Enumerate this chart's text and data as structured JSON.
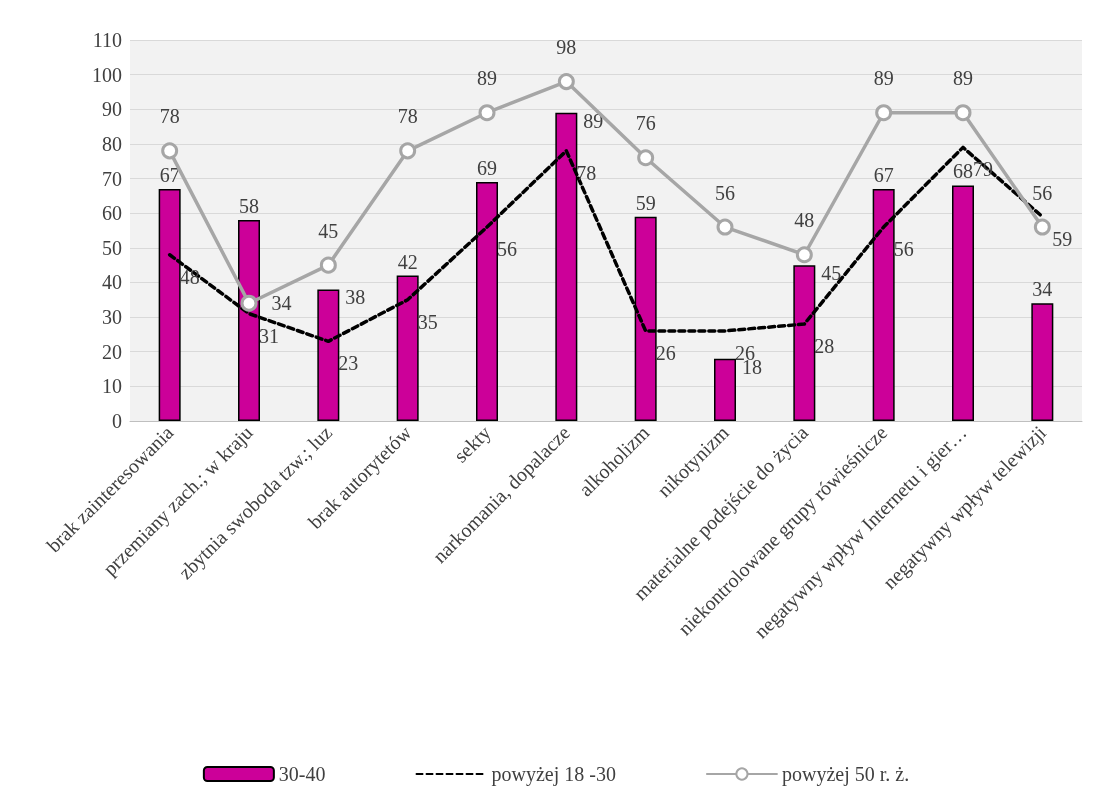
{
  "chart_data": {
    "type": "bar",
    "categories": [
      "brak zainteresowania",
      "przemiany zach.; w kraju",
      "zbytnia swoboda tzw.; luz",
      "brak autorytetów",
      "sekty",
      "narkomania, dopalacze",
      "alkoholizm",
      "nikotynizm",
      "materialne podejście do życia",
      "niekontrolowane grupy rówieśnicze",
      "negatywny wpływ Internetu i gier…",
      "negatywny wpływ telewizji"
    ],
    "series": [
      {
        "name": "30-40",
        "color": "#cc0099",
        "values": [
          67,
          58,
          38,
          42,
          69,
          89,
          59,
          18,
          45,
          67,
          68,
          34
        ]
      },
      {
        "name": "powyżej 18 -30",
        "type": "line",
        "color": "#000000",
        "line_style": "dashed",
        "marker": "none",
        "values": [
          48,
          31,
          23,
          35,
          56,
          78,
          26,
          26,
          28,
          56,
          79,
          59
        ]
      },
      {
        "name": "powyżej 50 r. ż.",
        "type": "line",
        "color": "#a6a6a6",
        "line_style": "solid",
        "marker": "circle",
        "values": [
          78,
          34,
          45,
          78,
          89,
          98,
          76,
          56,
          48,
          89,
          89,
          56
        ]
      }
    ],
    "ylim": [
      0,
      110
    ],
    "yticks": [
      0,
      10,
      20,
      30,
      40,
      50,
      60,
      70,
      80,
      90,
      100,
      110
    ],
    "grid": "y",
    "legend": "bottom",
    "data_labels": true
  }
}
